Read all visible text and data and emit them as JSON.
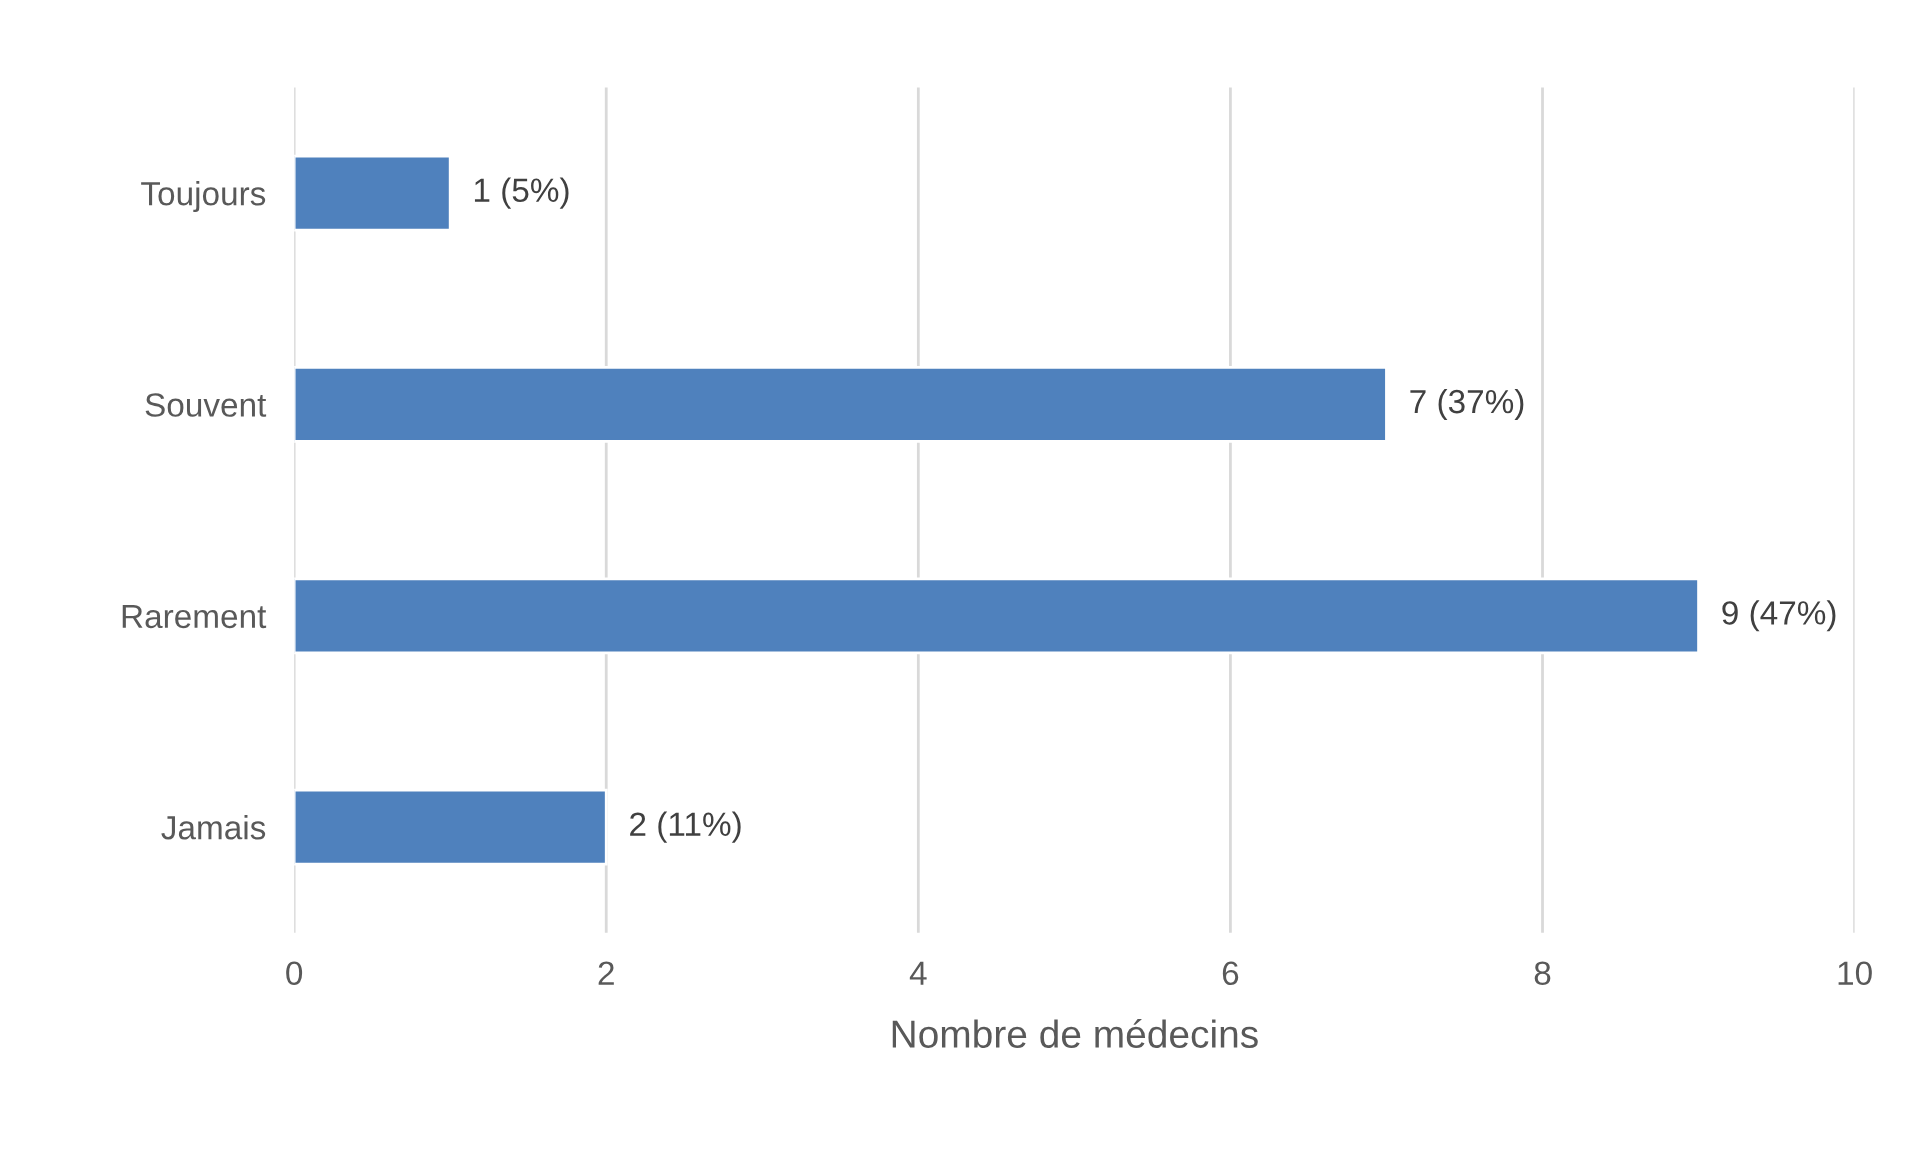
{
  "chart_data": {
    "type": "bar",
    "orientation": "horizontal",
    "xlabel": "Nombre de médecins",
    "categories": [
      "Toujours",
      "Souvent",
      "Rarement",
      "Jamais"
    ],
    "values": [
      1,
      7,
      9,
      2
    ],
    "value_labels": [
      "1 (5%)",
      "7 (37%)",
      "9 (47%)",
      "2 (11%)"
    ],
    "color": "#4f81bd",
    "xlim": [
      0,
      10
    ],
    "xticks": [
      0,
      2,
      4,
      6,
      8,
      10
    ],
    "grid": "x",
    "legend": false
  }
}
